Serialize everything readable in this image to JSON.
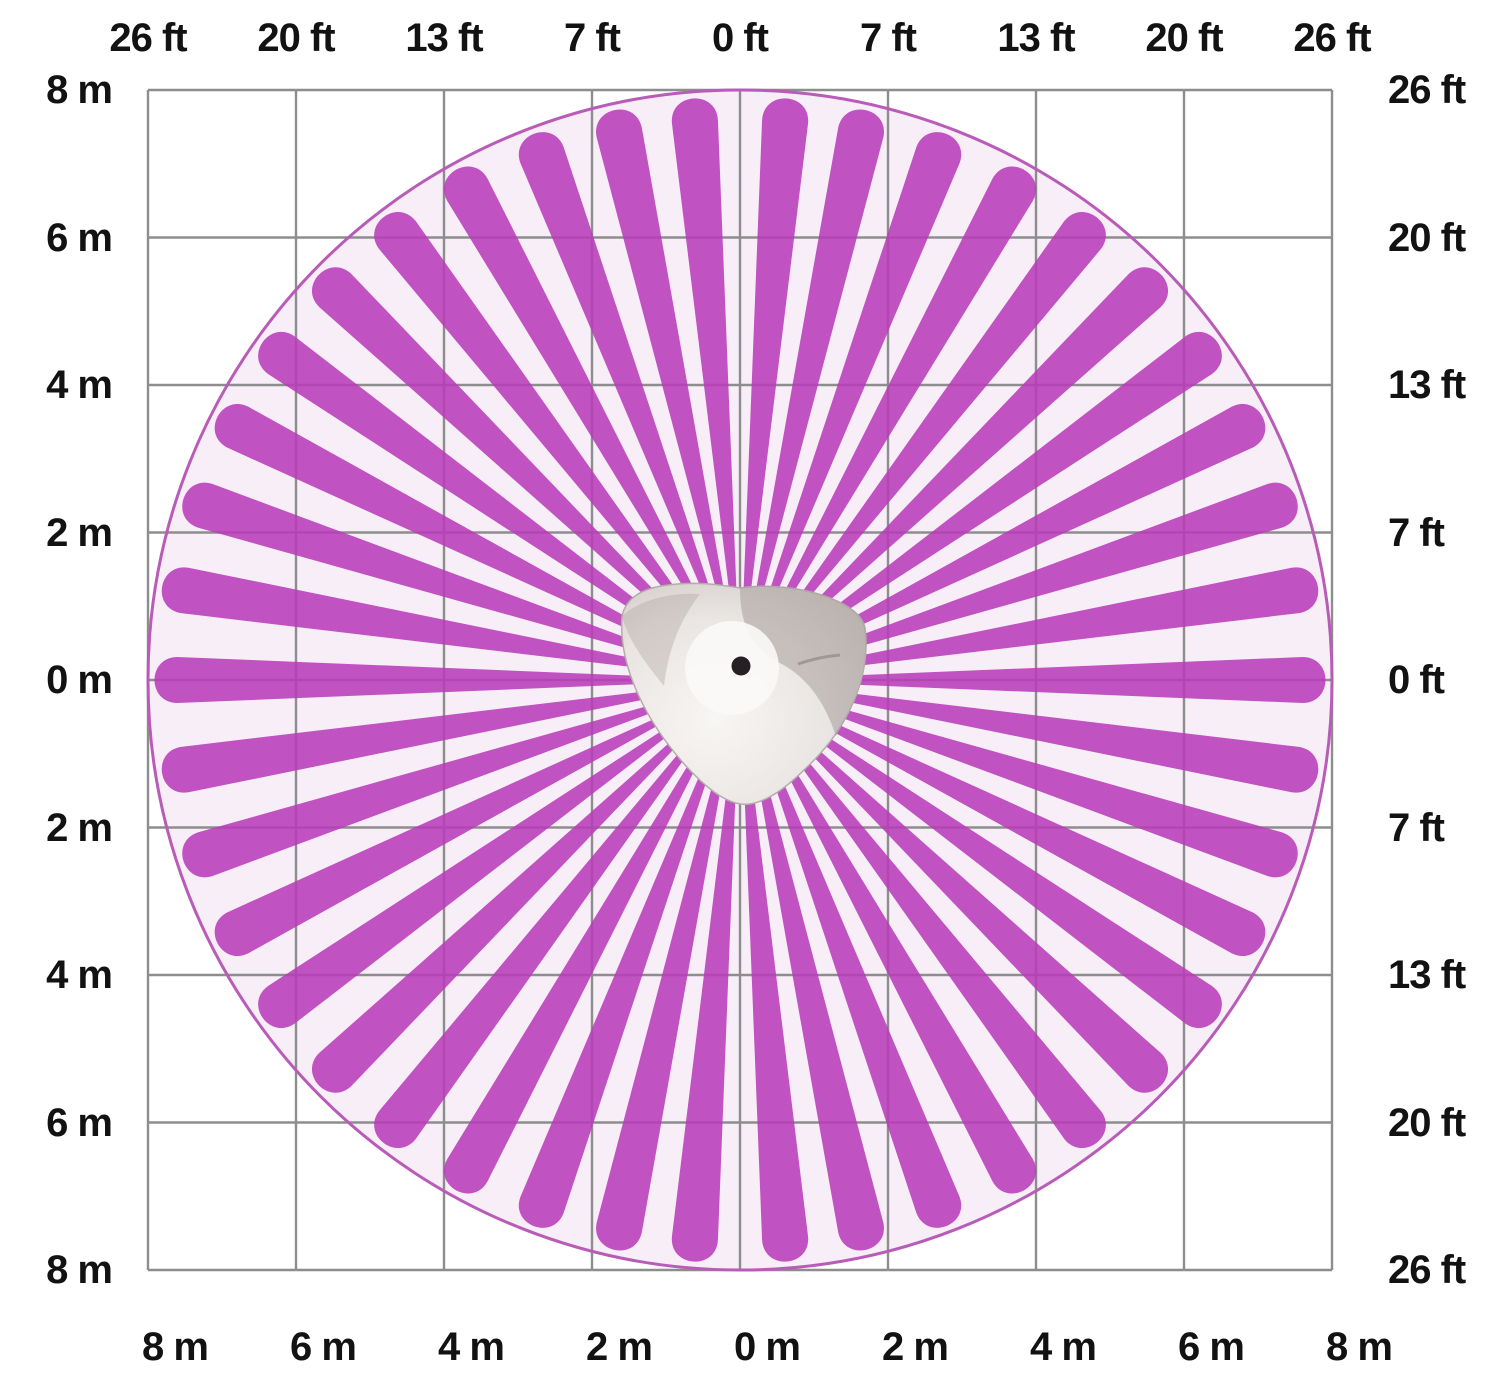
{
  "chart_data": {
    "type": "polar-coverage",
    "description": "Top-view 360-degree detection beam pattern of a ceiling-mounted PIR motion sensor on a meters/feet grid",
    "coverage_radius_m": 8,
    "coverage_radius_ft": 26,
    "grid": {
      "x_range_m": [
        -8,
        8
      ],
      "y_range_m": [
        -8,
        8
      ],
      "step_m": 2,
      "grid_on": true
    },
    "axes": {
      "top_ft_labels": [
        "26 ft",
        "20 ft",
        "13 ft",
        "7 ft",
        "0 ft",
        "7 ft",
        "13 ft",
        "20 ft",
        "26 ft"
      ],
      "bottom_m_labels": [
        "8 m",
        "6 m",
        "4 m",
        "2 m",
        "0 m",
        "2 m",
        "4 m",
        "6 m",
        "8 m"
      ],
      "left_m_labels": [
        "8 m",
        "6 m",
        "4 m",
        "2 m",
        "0 m",
        "2 m",
        "4 m",
        "6 m",
        "8 m"
      ],
      "right_ft_labels": [
        "26 ft",
        "20 ft",
        "13 ft",
        "7 ft",
        "0 ft",
        "7 ft",
        "13 ft",
        "20 ft",
        "26 ft"
      ]
    },
    "beams": {
      "count": 42,
      "angles_deg_from_north": [
        4.6,
        12.4,
        20.6,
        29,
        37.5,
        46,
        54.6,
        63.2,
        71.9,
        80.8,
        90,
        99.2,
        108.1,
        116.8,
        125.4,
        134,
        142.5,
        151,
        159.4,
        167.6,
        175.4,
        184.6,
        192.4,
        200.6,
        209,
        217.5,
        226,
        234.6,
        243.2,
        251.9,
        260.8,
        270,
        279.2,
        288.1,
        296.8,
        305.4,
        314,
        322.5,
        331,
        339.4,
        347.6,
        355.4
      ],
      "beam_width_deg": 4.7,
      "gap_at_north": true,
      "gap_at_south": true
    },
    "device": {
      "name": "360° PIR motion sensor (top view)"
    },
    "style": {
      "beam_color": "#b93cb9",
      "beam_opacity": 0.87,
      "circle_fill": "#f8eef8",
      "circle_outline": "#b85cb8",
      "grid_color": "#8d8d8d",
      "label_color": "#121212",
      "background": "#ffffff",
      "device_body": "#e9e5e2",
      "device_shade": "#a89f9c",
      "device_dot": "#262024"
    }
  }
}
